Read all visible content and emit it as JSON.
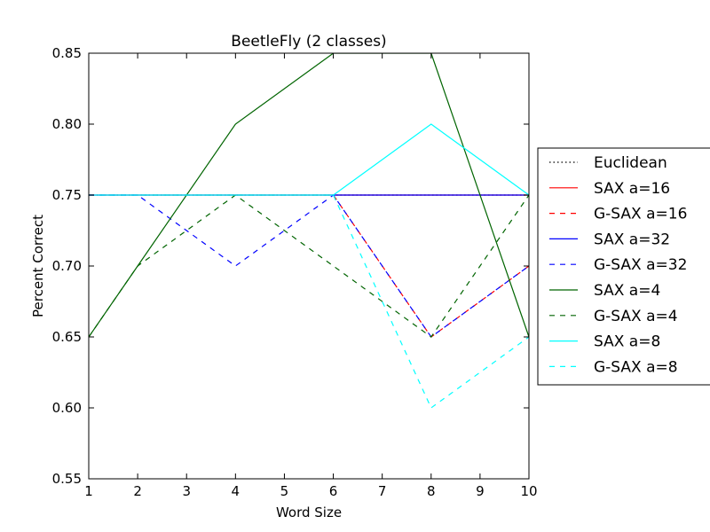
{
  "chart_data": {
    "type": "line",
    "title": "BeetleFly (2 classes)",
    "xlabel": "Word Size",
    "ylabel": "Percent Correct",
    "xlim": [
      1,
      10
    ],
    "ylim": [
      0.55,
      0.85
    ],
    "xticks": [
      "1",
      "2",
      "3",
      "4",
      "5",
      "6",
      "7",
      "8",
      "9",
      "10"
    ],
    "yticks": [
      "0.55",
      "0.60",
      "0.65",
      "0.70",
      "0.75",
      "0.80",
      "0.85"
    ],
    "grid": false,
    "legend_position": "outside-right",
    "x": [
      1,
      2,
      4,
      6,
      8,
      10
    ],
    "series": [
      {
        "name": "Euclidean",
        "color": "#000000",
        "style": "dotted",
        "values": [
          0.75,
          0.75,
          0.75,
          0.75,
          0.75,
          0.75
        ]
      },
      {
        "name": "SAX a=16",
        "color": "#ff0000",
        "style": "solid",
        "values": [
          0.75,
          0.75,
          0.75,
          0.75,
          0.75,
          0.75
        ]
      },
      {
        "name": "G-SAX a=16",
        "color": "#ff0000",
        "style": "dashed",
        "values": [
          0.75,
          0.75,
          0.75,
          0.75,
          0.65,
          0.7
        ]
      },
      {
        "name": "SAX a=32",
        "color": "#0000ff",
        "style": "solid",
        "values": [
          0.75,
          0.75,
          0.75,
          0.75,
          0.75,
          0.75
        ]
      },
      {
        "name": "G-SAX a=32",
        "color": "#0000ff",
        "style": "dashed",
        "values": [
          0.75,
          0.75,
          0.7,
          0.75,
          0.65,
          0.7
        ]
      },
      {
        "name": "SAX a=4",
        "color": "#006400",
        "style": "solid",
        "values": [
          0.65,
          0.7,
          0.8,
          0.85,
          0.85,
          0.65
        ]
      },
      {
        "name": "G-SAX a=4",
        "color": "#006400",
        "style": "dashed",
        "values": [
          0.65,
          0.7,
          0.75,
          0.7,
          0.65,
          0.75
        ]
      },
      {
        "name": "SAX a=8",
        "color": "#00ffff",
        "style": "solid",
        "values": [
          0.75,
          0.75,
          0.75,
          0.75,
          0.8,
          0.75
        ]
      },
      {
        "name": "G-SAX a=8",
        "color": "#00ffff",
        "style": "dashed",
        "values": [
          0.75,
          0.75,
          0.75,
          0.75,
          0.6,
          0.65
        ]
      }
    ]
  }
}
